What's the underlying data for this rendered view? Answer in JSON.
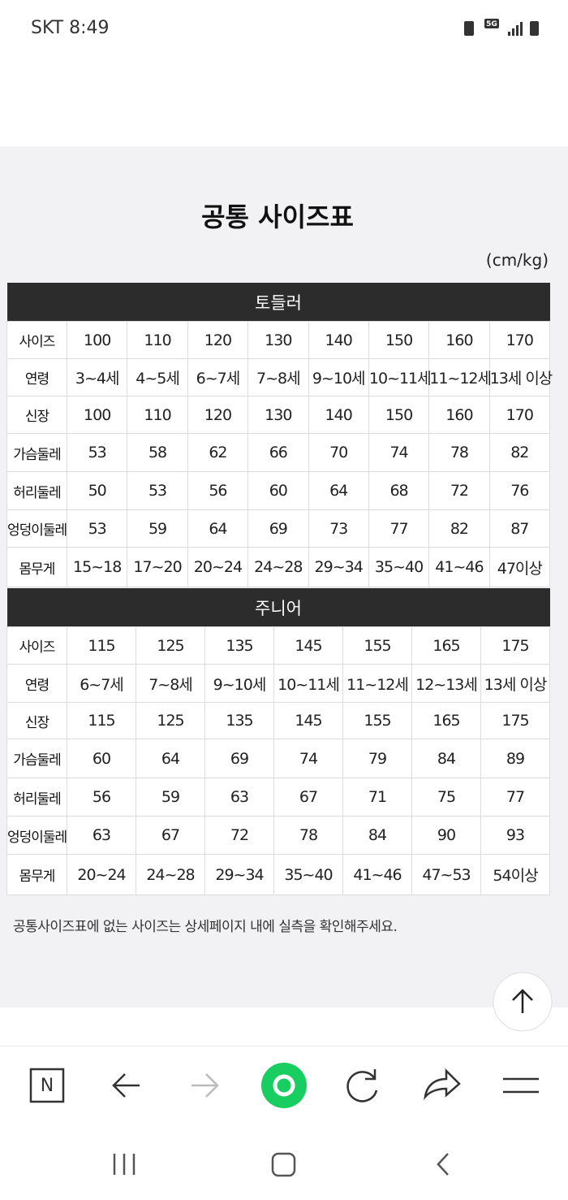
{
  "status_bar": {
    "carrier": "SKT",
    "time": "8:49",
    "network": "5G"
  },
  "page": {
    "title": "공통 사이즈표",
    "unit": "(cm/kg)",
    "sections": [
      {
        "name": "토들러",
        "rows": [
          {
            "label": "사이즈",
            "values": [
              "100",
              "110",
              "120",
              "130",
              "140",
              "150",
              "160",
              "170"
            ]
          },
          {
            "label": "연령",
            "values": [
              "3~4세",
              "4~5세",
              "6~7세",
              "7~8세",
              "9~10세",
              "10~11세",
              "11~12세",
              "13세 이상"
            ]
          },
          {
            "label": "신장",
            "values": [
              "100",
              "110",
              "120",
              "130",
              "140",
              "150",
              "160",
              "170"
            ]
          },
          {
            "label": "가슴둘레",
            "values": [
              "53",
              "58",
              "62",
              "66",
              "70",
              "74",
              "78",
              "82"
            ]
          },
          {
            "label": "허리둘레",
            "values": [
              "50",
              "53",
              "56",
              "60",
              "64",
              "68",
              "72",
              "76"
            ]
          },
          {
            "label": "엉덩이둘레",
            "values": [
              "53",
              "59",
              "64",
              "69",
              "73",
              "77",
              "82",
              "87"
            ]
          },
          {
            "label": "몸무게",
            "values": [
              "15~18",
              "17~20",
              "20~24",
              "24~28",
              "29~34",
              "35~40",
              "41~46",
              "47이상"
            ]
          }
        ]
      },
      {
        "name": "주니어",
        "rows": [
          {
            "label": "사이즈",
            "values": [
              "115",
              "125",
              "135",
              "145",
              "155",
              "165",
              "175"
            ]
          },
          {
            "label": "연령",
            "values": [
              "6~7세",
              "7~8세",
              "9~10세",
              "10~11세",
              "11~12세",
              "12~13세",
              "13세 이상"
            ]
          },
          {
            "label": "신장",
            "values": [
              "115",
              "125",
              "135",
              "145",
              "155",
              "165",
              "175"
            ]
          },
          {
            "label": "가슴둘레",
            "values": [
              "60",
              "64",
              "69",
              "74",
              "79",
              "84",
              "89"
            ]
          },
          {
            "label": "허리둘레",
            "values": [
              "56",
              "59",
              "63",
              "67",
              "71",
              "75",
              "77"
            ]
          },
          {
            "label": "엉덩이둘레",
            "values": [
              "63",
              "67",
              "72",
              "78",
              "84",
              "90",
              "93"
            ]
          },
          {
            "label": "몸무게",
            "values": [
              "20~24",
              "24~28",
              "29~34",
              "35~40",
              "41~46",
              "47~53",
              "54이상"
            ]
          }
        ]
      }
    ],
    "note": "공통사이즈표에 없는 사이즈는 상세페이지 내에 실측을 확인해주세요."
  },
  "browser_bar": {
    "logo": "N"
  }
}
